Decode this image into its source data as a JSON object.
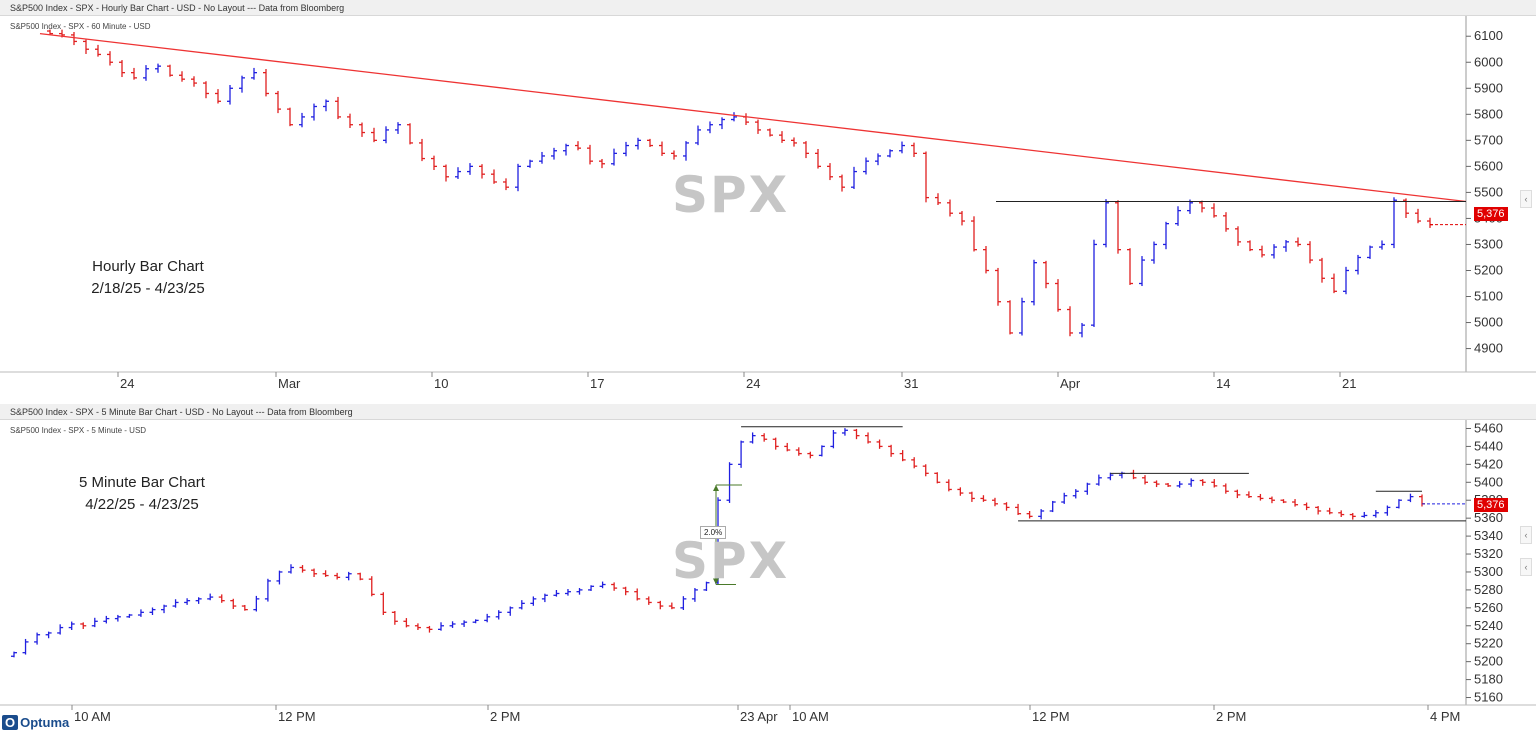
{
  "top_panel": {
    "header": "S&P500 Index - SPX - Hourly Bar Chart - USD - No Layout --- Data from Bloomberg",
    "subtitle": "S&P500 Index - SPX - 60 Minute - USD",
    "annotation_line1": "Hourly Bar Chart",
    "annotation_line2": "2/18/25 - 4/23/25",
    "watermark": "SPX",
    "last_price": "5,376"
  },
  "bottom_panel": {
    "header": "S&P500 Index - SPX - 5 Minute Bar Chart - USD - No Layout --- Data from Bloomberg",
    "subtitle": "S&P500 Index - SPX - 5 Minute - USD",
    "annotation_line1": "5 Minute Bar Chart",
    "annotation_line2": "4/22/25 - 4/23/25",
    "watermark": "SPX",
    "last_price": "5,376",
    "measure_label": "2.0%"
  },
  "logo": "Optuma",
  "colors": {
    "up": "#2020e0",
    "down": "#e02020",
    "trendline": "#ee3333",
    "price_tag": "#e00000"
  },
  "chart_data": [
    {
      "type": "bar",
      "title": "S&P500 Index - SPX - Hourly Bar Chart - USD",
      "ylim": [
        4810,
        6170
      ],
      "yticks": [
        4900,
        5000,
        5100,
        5200,
        5300,
        5400,
        5500,
        5600,
        5700,
        5800,
        5900,
        6000,
        6100
      ],
      "x_tick_labels": [
        "24",
        "Mar",
        "10",
        "17",
        "24",
        "31",
        "Apr",
        "14",
        "21"
      ],
      "trendline": {
        "from": 6110,
        "to": 5465
      },
      "resistance_line": 5465,
      "closes": [
        6110,
        6105,
        6080,
        6050,
        6030,
        6000,
        5960,
        5940,
        5975,
        5985,
        5950,
        5935,
        5920,
        5880,
        5850,
        5900,
        5940,
        5960,
        5880,
        5820,
        5760,
        5790,
        5830,
        5850,
        5790,
        5760,
        5730,
        5700,
        5740,
        5760,
        5690,
        5630,
        5600,
        5560,
        5580,
        5600,
        5570,
        5540,
        5520,
        5600,
        5620,
        5640,
        5660,
        5680,
        5670,
        5620,
        5610,
        5650,
        5680,
        5700,
        5680,
        5650,
        5640,
        5690,
        5740,
        5760,
        5780,
        5790,
        5770,
        5740,
        5720,
        5700,
        5690,
        5650,
        5600,
        5560,
        5520,
        5580,
        5620,
        5640,
        5660,
        5680,
        5650,
        5480,
        5460,
        5420,
        5390,
        5280,
        5200,
        5080,
        4960,
        5080,
        5230,
        5150,
        5050,
        4960,
        4990,
        5300,
        5460,
        5280,
        5150,
        5240,
        5300,
        5380,
        5430,
        5460,
        5440,
        5410,
        5360,
        5310,
        5280,
        5260,
        5290,
        5310,
        5300,
        5240,
        5170,
        5120,
        5200,
        5250,
        5290,
        5300,
        5470,
        5420,
        5390,
        5376
      ],
      "last_price": 5376
    },
    {
      "type": "bar",
      "title": "S&P500 Index - SPX - 5 Minute Bar Chart - USD",
      "ylim": [
        5155,
        5465
      ],
      "yticks": [
        5160,
        5180,
        5200,
        5220,
        5240,
        5260,
        5280,
        5300,
        5320,
        5340,
        5360,
        5380,
        5400,
        5420,
        5440,
        5460
      ],
      "x_tick_labels": [
        "10 AM",
        "12 PM",
        "2 PM",
        "23 Apr",
        "10 AM",
        "12 PM",
        "2 PM",
        "4 PM"
      ],
      "support_line": 5357,
      "resistance_lines": [
        5462,
        5410,
        5390
      ],
      "closes": [
        5210,
        5222,
        5230,
        5232,
        5238,
        5242,
        5240,
        5245,
        5248,
        5250,
        5252,
        5255,
        5258,
        5262,
        5266,
        5268,
        5270,
        5272,
        5268,
        5262,
        5258,
        5270,
        5290,
        5300,
        5305,
        5302,
        5298,
        5296,
        5294,
        5298,
        5292,
        5275,
        5255,
        5245,
        5240,
        5238,
        5236,
        5240,
        5242,
        5244,
        5246,
        5250,
        5255,
        5260,
        5265,
        5270,
        5274,
        5276,
        5278,
        5280,
        5284,
        5286,
        5282,
        5278,
        5270,
        5266,
        5262,
        5260,
        5270,
        5280,
        5288,
        5380,
        5420,
        5445,
        5452,
        5448,
        5440,
        5436,
        5432,
        5430,
        5440,
        5455,
        5458,
        5452,
        5445,
        5440,
        5432,
        5425,
        5418,
        5410,
        5400,
        5392,
        5388,
        5382,
        5380,
        5376,
        5372,
        5365,
        5362,
        5368,
        5378,
        5385,
        5390,
        5398,
        5405,
        5408,
        5410,
        5405,
        5400,
        5398,
        5396,
        5398,
        5402,
        5400,
        5396,
        5390,
        5386,
        5384,
        5382,
        5380,
        5378,
        5375,
        5372,
        5368,
        5366,
        5364,
        5362,
        5363,
        5366,
        5372,
        5380,
        5384,
        5376
      ],
      "last_price": 5376,
      "measure_pct": 2.0
    }
  ]
}
